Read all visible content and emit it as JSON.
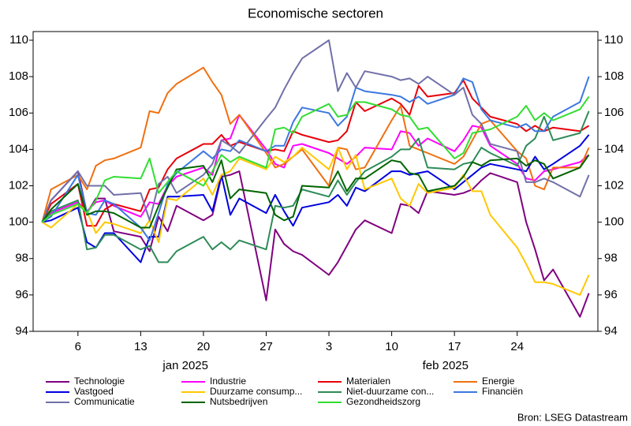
{
  "chart_data": {
    "type": "line",
    "title": "Economische sectoren",
    "source": "Bron: LSEG Datastream",
    "x": [
      "2025-01-02",
      "2025-01-03",
      "2025-01-06",
      "2025-01-07",
      "2025-01-08",
      "2025-01-09",
      "2025-01-10",
      "2025-01-13",
      "2025-01-14",
      "2025-01-15",
      "2025-01-16",
      "2025-01-17",
      "2025-01-20",
      "2025-01-21",
      "2025-01-22",
      "2025-01-23",
      "2025-01-24",
      "2025-01-27",
      "2025-01-28",
      "2025-01-29",
      "2025-01-30",
      "2025-01-31",
      "2025-02-03",
      "2025-02-04",
      "2025-02-05",
      "2025-02-06",
      "2025-02-07",
      "2025-02-10",
      "2025-02-11",
      "2025-02-12",
      "2025-02-13",
      "2025-02-14",
      "2025-02-17",
      "2025-02-18",
      "2025-02-19",
      "2025-02-20",
      "2025-02-21",
      "2025-02-24",
      "2025-02-25",
      "2025-02-26",
      "2025-02-27",
      "2025-02-28",
      "2025-03-03",
      "2025-03-04"
    ],
    "xlim": [
      "2025-01-01",
      "2025-03-05"
    ],
    "xticks": [
      {
        "value": "2025-01-06",
        "label": "6"
      },
      {
        "value": "2025-01-13",
        "label": "13"
      },
      {
        "value": "2025-01-20",
        "label": "20"
      },
      {
        "value": "2025-01-27",
        "label": "27"
      },
      {
        "value": "2025-02-03",
        "label": "3"
      },
      {
        "value": "2025-02-10",
        "label": "10"
      },
      {
        "value": "2025-02-17",
        "label": "17"
      },
      {
        "value": "2025-02-24",
        "label": "24"
      }
    ],
    "month_labels": [
      {
        "value": "2025-01-18",
        "label": "jan 2025"
      },
      {
        "value": "2025-02-16",
        "label": "feb 2025"
      }
    ],
    "ylim": [
      94,
      110
    ],
    "yticks": [
      94,
      96,
      98,
      100,
      102,
      104,
      106,
      108,
      110
    ],
    "series": [
      {
        "name": "Technologie",
        "color": "#800080",
        "values": [
          100,
          101.2,
          102.8,
          100.5,
          101.3,
          101.3,
          99.5,
          99.2,
          98.4,
          100.3,
          99.5,
          100.9,
          100.1,
          100.4,
          102.5,
          102.6,
          102.8,
          95.7,
          99.6,
          98.8,
          98.4,
          98.2,
          97.1,
          97.8,
          98.7,
          99.6,
          100.1,
          99.4,
          101.0,
          100.9,
          100.5,
          101.7,
          101.5,
          101.6,
          101.8,
          102.3,
          102.7,
          102.2,
          100.0,
          98.5,
          96.8,
          97.4,
          94.8,
          96.1
        ]
      },
      {
        "name": "Industrie",
        "color": "#ff00ff",
        "values": [
          100,
          100.5,
          101.1,
          100.6,
          101.1,
          101.2,
          100.9,
          100.3,
          101.1,
          101.0,
          102.0,
          102.5,
          103.0,
          102.6,
          104.5,
          104.6,
          105.9,
          104.0,
          103.2,
          103.0,
          104.2,
          104.3,
          103.8,
          103.5,
          103.2,
          103.6,
          104.1,
          104.0,
          105.0,
          104.9,
          104.2,
          104.6,
          103.9,
          104.5,
          105.3,
          105.2,
          104.2,
          103.2,
          102.4,
          102.3,
          102.8,
          102.9,
          103.3,
          103.7
        ]
      },
      {
        "name": "Materialen",
        "color": "#e8000b",
        "values": [
          100,
          101.0,
          102.1,
          99.8,
          99.8,
          100.7,
          101.0,
          100.6,
          101.8,
          101.9,
          102.9,
          103.5,
          104.3,
          104.3,
          104.8,
          104.2,
          104.4,
          103.9,
          104.0,
          103.9,
          105.0,
          104.8,
          104.4,
          104.5,
          105.0,
          106.6,
          106.1,
          106.8,
          106.5,
          105.9,
          107.5,
          106.9,
          107.1,
          107.8,
          106.8,
          106.3,
          105.8,
          105.4,
          105.0,
          105.3,
          105.0,
          105.2,
          105.0,
          105.3
        ]
      },
      {
        "name": "Energie",
        "color": "#f07010",
        "values": [
          100,
          101.8,
          102.6,
          101.8,
          103.1,
          103.4,
          103.5,
          104.1,
          106.1,
          106.0,
          107.1,
          107.6,
          108.5,
          107.7,
          107.0,
          105.4,
          105.9,
          103.8,
          103.0,
          103.2,
          103.6,
          104.0,
          102.0,
          104.1,
          104.0,
          102.9,
          103.0,
          105.6,
          106.4,
          104.2,
          104.0,
          103.8,
          103.2,
          103.6,
          104.5,
          105.4,
          105.6,
          103.9,
          103.5,
          102.0,
          101.8,
          103.0,
          103.0,
          104.1
        ]
      },
      {
        "name": "Vastgoed",
        "color": "#0000e0",
        "values": [
          100,
          100.1,
          100.8,
          98.9,
          98.6,
          99.4,
          99.4,
          97.8,
          99.2,
          99.2,
          101.4,
          101.4,
          101.5,
          100.6,
          102.6,
          100.4,
          101.3,
          100.5,
          101.5,
          100.6,
          99.8,
          100.8,
          101.1,
          101.5,
          100.9,
          101.9,
          101.7,
          102.8,
          102.8,
          102.6,
          102.7,
          102.8,
          101.8,
          102.2,
          102.6,
          103.0,
          103.2,
          102.9,
          102.8,
          103.6,
          102.9,
          103.2,
          104.2,
          104.8
        ]
      },
      {
        "name": "Duurzame consump...",
        "color": "#ffc800",
        "values": [
          100,
          99.7,
          101.0,
          100.6,
          99.4,
          100.0,
          99.9,
          99.4,
          100.1,
          98.9,
          101.3,
          101.2,
          102.4,
          101.5,
          102.6,
          102.8,
          103.5,
          102.9,
          103.6,
          103.3,
          103.6,
          104.1,
          102.9,
          104.1,
          102.9,
          103.7,
          101.8,
          102.4,
          101.3,
          100.9,
          102.1,
          101.6,
          101.9,
          102.6,
          101.7,
          101.7,
          100.4,
          98.6,
          97.7,
          96.7,
          96.7,
          96.6,
          96.0,
          97.1
        ]
      },
      {
        "name": "Niet-duurzame con...",
        "color": "#2e8b57",
        "values": [
          100,
          100.6,
          101.2,
          98.5,
          98.6,
          99.3,
          99.3,
          98.5,
          98.7,
          97.8,
          97.8,
          98.4,
          99.2,
          98.5,
          98.9,
          98.5,
          99.0,
          98.5,
          100.9,
          100.8,
          100.9,
          101.8,
          101.4,
          102.3,
          101.5,
          102.2,
          102.8,
          103.6,
          104.0,
          104.0,
          104.6,
          103.0,
          102.9,
          103.2,
          103.3,
          104.1,
          103.8,
          103.1,
          104.2,
          104.6,
          105.8,
          104.5,
          104.9,
          106.1
        ]
      },
      {
        "name": "Financiën",
        "color": "#3c78e0",
        "values": [
          100,
          100.3,
          102.6,
          100.5,
          100.4,
          101.2,
          101.0,
          99.7,
          99.0,
          100.5,
          102.1,
          102.7,
          103.9,
          103.5,
          104.0,
          103.9,
          104.5,
          103.9,
          104.2,
          104.2,
          105.5,
          106.3,
          106.0,
          105.3,
          105.8,
          107.4,
          107.2,
          107.0,
          106.9,
          106.6,
          106.9,
          106.5,
          107.0,
          107.9,
          107.7,
          106.2,
          105.6,
          105.2,
          105.4,
          105.0,
          105.0,
          105.8,
          106.6,
          108.0
        ]
      },
      {
        "name": "Communicatie",
        "color": "#7070a8",
        "values": [
          100,
          101.2,
          102.8,
          102.0,
          102.0,
          102.0,
          101.5,
          101.6,
          100.1,
          102.1,
          102.5,
          101.6,
          102.6,
          103.2,
          104.5,
          104.2,
          103.8,
          105.7,
          106.3,
          107.3,
          108.2,
          109.0,
          110.0,
          107.2,
          108.2,
          107.4,
          108.3,
          108.0,
          107.8,
          107.9,
          107.6,
          108.0,
          107.0,
          107.4,
          105.9,
          105.4,
          104.3,
          103.9,
          102.2,
          102.2,
          102.4,
          102.2,
          101.4,
          102.6
        ]
      },
      {
        "name": "Nutsbedrijven",
        "color": "#006400",
        "values": [
          100,
          100.7,
          102.1,
          100.4,
          100.6,
          100.6,
          100.5,
          99.7,
          99.7,
          100.9,
          101.9,
          102.9,
          103.1,
          102.2,
          103.4,
          101.3,
          101.8,
          101.6,
          100.4,
          100.1,
          100.3,
          102.0,
          101.9,
          102.8,
          101.7,
          102.4,
          102.4,
          103.4,
          103.3,
          102.7,
          102.6,
          101.7,
          102.0,
          102.5,
          103.3,
          103.1,
          103.4,
          103.5,
          103.1,
          103.4,
          103.2,
          102.4,
          103.0,
          103.7
        ]
      },
      {
        "name": "Gezondheidszorg",
        "color": "#33dd33",
        "values": [
          100,
          100.4,
          101.0,
          100.5,
          101.2,
          102.3,
          102.5,
          102.4,
          103.5,
          101.6,
          102.2,
          102.8,
          102.0,
          102.8,
          103.7,
          103.3,
          103.6,
          103.0,
          105.1,
          105.2,
          104.9,
          105.8,
          106.5,
          105.8,
          105.9,
          106.6,
          106.6,
          106.2,
          105.9,
          105.8,
          105.1,
          105.2,
          103.5,
          103.8,
          104.9,
          105.0,
          105.1,
          105.8,
          106.4,
          105.6,
          106.0,
          105.6,
          106.2,
          106.9
        ]
      }
    ]
  }
}
